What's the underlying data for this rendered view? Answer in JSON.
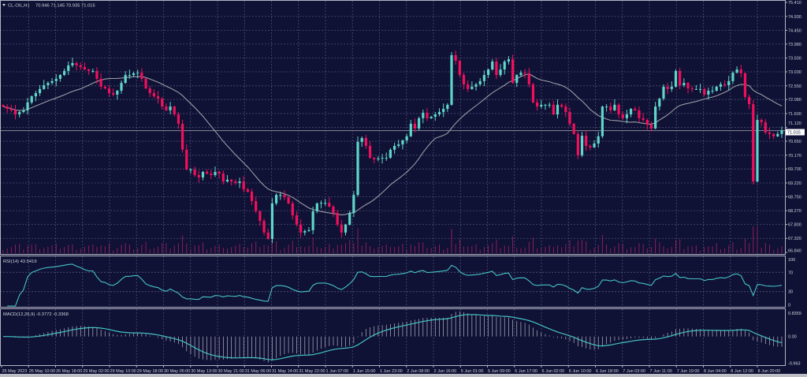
{
  "header": {
    "symbol": "CL-OIL,H1",
    "ohlc": "70.946 71.145 70.935 71.015"
  },
  "price_axis": {
    "labels": [
      "75.410",
      "74.930",
      "74.450",
      "73.980",
      "73.500",
      "73.030",
      "72.550",
      "72.080",
      "71.600",
      "71.120",
      "70.650",
      "70.170",
      "69.700",
      "69.220",
      "68.750",
      "68.270",
      "67.800",
      "67.320",
      "66.840"
    ],
    "current_price": "71.015"
  },
  "rsi": {
    "label": "RSI(14) 43.5419",
    "levels": [
      "100",
      "70",
      "30",
      "0"
    ]
  },
  "macd": {
    "label": "MACD(12,26,9) -0.3772 -0.3368",
    "levels": [
      "0.8359",
      "0.00",
      "-0.963"
    ]
  },
  "time_axis": [
    "26 May 2023",
    "26 May 10:00",
    "26 May 18:00",
    "29 May 02:00",
    "29 May 10:00",
    "29 May 18:00",
    "30 May 05:00",
    "30 May 13:00",
    "30 May 21:00",
    "31 May 06:00",
    "31 May 14:00",
    "31 May 22:00",
    "1 Jun 07:00",
    "1 Jun 15:00",
    "1 Jun 23:00",
    "2 Jun 08:00",
    "2 Jun 16:00",
    "5 Jun 01:00",
    "5 Jun 09:00",
    "5 Jun 17:00",
    "6 Jun 02:00",
    "6 Jun 10:00",
    "6 Jun 18:00",
    "7 Jun 03:00",
    "7 Jun 11:00",
    "7 Jun 19:00",
    "8 Jun 04:00",
    "8 Jun 12:00",
    "8 Jun 20:00"
  ],
  "colors": {
    "background": "#0f1135",
    "grid": "#4b4e72",
    "bull": "#5fd6c9",
    "bear": "#f2105c",
    "moving_average": "#9c9ca4",
    "rsi_line": "#46c3c3",
    "macd_signal": "#46c3c3",
    "macd_histogram": "#b8b8c4",
    "volume": "#8c1f5c"
  },
  "chart_data": {
    "type": "candlestick",
    "symbol": "CL-OIL",
    "timeframe": "H1",
    "ylim": [
      66.84,
      75.41
    ],
    "grid": true,
    "indicators": [
      "moving average",
      "volume",
      "RSI(14)",
      "MACD(12,26,9)"
    ],
    "closes": [
      71.84,
      71.76,
      71.71,
      71.57,
      71.65,
      71.71,
      71.98,
      72.19,
      72.3,
      72.44,
      72.57,
      72.65,
      72.71,
      72.79,
      72.92,
      73.06,
      73.25,
      73.33,
      73.25,
      73.19,
      73.11,
      73.06,
      73.06,
      72.79,
      72.52,
      72.46,
      72.3,
      72.25,
      72.38,
      72.65,
      72.92,
      72.92,
      72.98,
      73.0,
      72.79,
      72.46,
      72.3,
      72.19,
      72.11,
      71.84,
      71.71,
      71.84,
      71.57,
      71.25,
      70.36,
      69.68,
      69.68,
      69.49,
      69.41,
      69.6,
      69.54,
      69.49,
      69.6,
      69.54,
      69.27,
      69.33,
      69.27,
      69.22,
      69.27,
      69.0,
      68.92,
      68.6,
      68.25,
      67.92,
      67.52,
      67.3,
      68.52,
      68.81,
      68.81,
      68.73,
      68.52,
      68.11,
      67.79,
      67.52,
      67.57,
      67.6,
      68.25,
      68.52,
      68.54,
      68.54,
      68.41,
      68.19,
      67.79,
      67.52,
      67.79,
      68.19,
      68.81,
      70.63,
      70.76,
      70.49,
      70.08,
      70.03,
      70.06,
      70.08,
      70.08,
      70.36,
      70.49,
      70.54,
      70.68,
      70.82,
      71.25,
      71.09,
      71.44,
      71.63,
      71.44,
      71.49,
      71.57,
      71.65,
      71.76,
      71.9,
      73.6,
      73.41,
      72.92,
      72.6,
      72.44,
      72.52,
      72.6,
      72.71,
      72.92,
      73.11,
      73.38,
      72.92,
      73.11,
      73.38,
      73.46,
      72.65,
      72.92,
      73.0,
      72.98,
      72.6,
      71.98,
      71.84,
      71.9,
      71.9,
      71.9,
      71.57,
      71.9,
      71.84,
      71.65,
      71.25,
      70.9,
      70.17,
      70.84,
      70.49,
      70.44,
      70.57,
      70.82,
      71.84,
      71.84,
      71.71,
      71.9,
      71.57,
      71.44,
      71.57,
      71.76,
      71.71,
      71.44,
      71.38,
      71.22,
      71.09,
      71.84,
      72.11,
      72.52,
      72.44,
      72.52,
      73.06,
      72.57,
      72.65,
      72.46,
      72.44,
      72.44,
      72.44,
      72.25,
      72.38,
      72.38,
      72.52,
      72.6,
      72.57,
      72.71,
      73.0,
      73.11,
      72.98,
      72.17,
      71.92,
      69.27,
      71.38,
      71.3,
      70.95,
      70.9,
      70.82,
      70.9,
      71.02
    ]
  }
}
